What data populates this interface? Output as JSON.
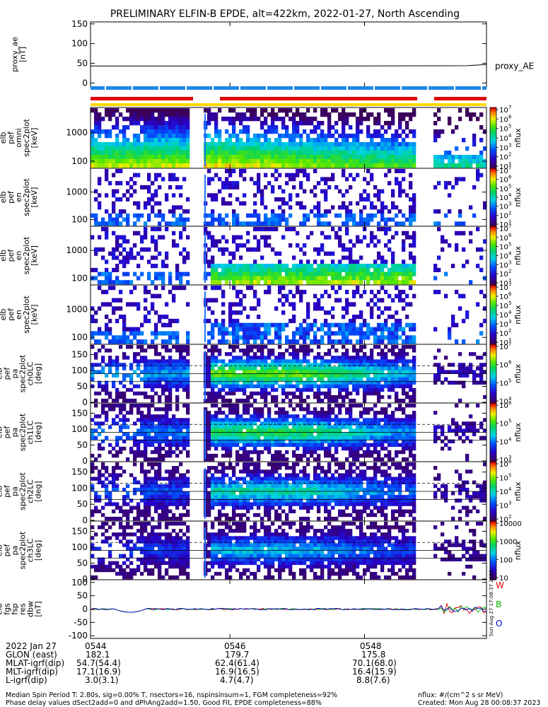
{
  "title": "PRELIMINARY ELFIN-B EPDE, alt=422km, 2022-01-27, North Ascending",
  "chart_data": [
    {
      "type": "line",
      "ylabel": "proxy_ae\n[nT]",
      "yticks": [
        "150",
        "100",
        "50",
        "0"
      ],
      "ylim": [
        -10,
        155
      ],
      "series": [
        {
          "name": "proxy_AE",
          "x_frac": [
            0,
            0.6,
            0.95,
            1
          ],
          "values": [
            43,
            43,
            44,
            47
          ]
        }
      ]
    },
    {
      "type": "heatmap",
      "ylabel": "elb\npef\nomni\nspec2plot\n[keV]",
      "yticks": [
        "1000",
        "100"
      ],
      "ylog": true,
      "ylim": [
        60,
        7000
      ],
      "colorbar": {
        "label": "nflux",
        "ticks": [
          "10^7",
          "10^6",
          "10^5",
          "10^4",
          "10^3",
          "10^2",
          "10^1"
        ]
      }
    },
    {
      "type": "heatmap",
      "ylabel": "elb\npef\nen\nspec2plot\n[keV]",
      "yticks": [
        "1000",
        "100"
      ],
      "ylog": true,
      "ylim": [
        60,
        7000
      ],
      "colorbar": {
        "label": "nflux",
        "ticks": [
          "10^7",
          "10^6",
          "10^5",
          "10^4",
          "10^3",
          "10^2",
          "10^1"
        ]
      }
    },
    {
      "type": "heatmap",
      "ylabel": "elb\npef\nen\nspec2plot\n[keV]",
      "yticks": [
        "1000",
        "100"
      ],
      "ylog": true,
      "ylim": [
        60,
        7000
      ],
      "colorbar": {
        "label": "nflux",
        "ticks": [
          "10^7",
          "10^6",
          "10^5",
          "10^4",
          "10^3",
          "10^2",
          "10^1"
        ]
      }
    },
    {
      "type": "heatmap",
      "ylabel": "elb\npef\nen\nspec2plot\n[keV]",
      "yticks": [
        "1000",
        "100"
      ],
      "ylog": true,
      "ylim": [
        60,
        7000
      ],
      "colorbar": {
        "label": "nflux",
        "ticks": [
          "10^7",
          "10^6",
          "10^5",
          "10^4",
          "10^3",
          "10^2",
          "10^1"
        ]
      }
    },
    {
      "type": "heatmap",
      "ylabel": "elb\npef\npa\nspec2plot\nch0LC\n[deg]",
      "yticks": [
        "150",
        "100",
        "50",
        "0"
      ],
      "ylim": [
        0,
        180
      ],
      "colorbar": {
        "label": "nflux",
        "ticks": [
          "10^7",
          "10^6",
          "10^5",
          "10^4"
        ]
      }
    },
    {
      "type": "heatmap",
      "ylabel": "elb\npef\npa\nspec2plot\nch1LC\n[deg]",
      "yticks": [
        "150",
        "100",
        "50",
        "0"
      ],
      "ylim": [
        0,
        180
      ],
      "colorbar": {
        "label": "nflux",
        "ticks": [
          "10^6",
          "10^5",
          "10^4",
          "10^3"
        ]
      }
    },
    {
      "type": "heatmap",
      "ylabel": "elb\npef\npa\nspec2plot\nch2LC\n[deg]",
      "yticks": [
        "150",
        "100",
        "50",
        "0"
      ],
      "ylim": [
        0,
        180
      ],
      "colorbar": {
        "label": "nflux",
        "ticks": [
          "10^6",
          "10^5",
          "10^4",
          "10^3",
          "10^2"
        ]
      }
    },
    {
      "type": "heatmap",
      "ylabel": "elb\npef\npa\nspec2plot\nch3LC\n[deg]",
      "yticks": [
        "150",
        "100",
        "50",
        "0"
      ],
      "ylim": [
        0,
        180
      ],
      "colorbar": {
        "label": "nflux",
        "ticks": [
          "10000",
          "1000",
          "100",
          "10"
        ]
      }
    },
    {
      "type": "line",
      "ylabel": "elb\nfgs\nfsp\nres\ndbw\n[nT]",
      "yticks": [
        "100",
        "50",
        "0",
        "-50",
        "-100"
      ],
      "ylim": [
        -110,
        110
      ],
      "legend": [
        "W",
        "B",
        "O"
      ],
      "legend_colors": [
        "#e00000",
        "#00b000",
        "#0000d0"
      ]
    }
  ],
  "footer": {
    "rows": [
      [
        "2022 Jan 27",
        "0544",
        "0546",
        "0548"
      ],
      [
        "GLON (east)",
        "182.1",
        "179.7",
        "175.8"
      ],
      [
        "MLAT-igrf(dip)",
        "54.7(54.4)",
        "62.4(61.4)",
        "70.1(68.0)"
      ],
      [
        "MLT-igrf(dip)",
        "17.1(16.9)",
        "16.9(16.5)",
        "16.4(15.9)"
      ],
      [
        "L-igrf(dip)",
        "3.0(3.1)",
        "4.7(4.7)",
        "8.8(7.6)"
      ]
    ],
    "note1": "Median Spin Period T: 2.80s, sig=0.00% T, nsectors=16, nspinsinsum=1, FGM completeness=92%",
    "note2": "Phase delay values dSect2add=0 and dPhAng2add=1.50, Good Fit, EPDE completeness=88%",
    "units": "nflux: #/(cm^2 s sr MeV)",
    "created": "Created: Mon Aug 28 00:08:37 2023",
    "side_stamp": "Sun Aug 27 17:08:37 2023"
  }
}
